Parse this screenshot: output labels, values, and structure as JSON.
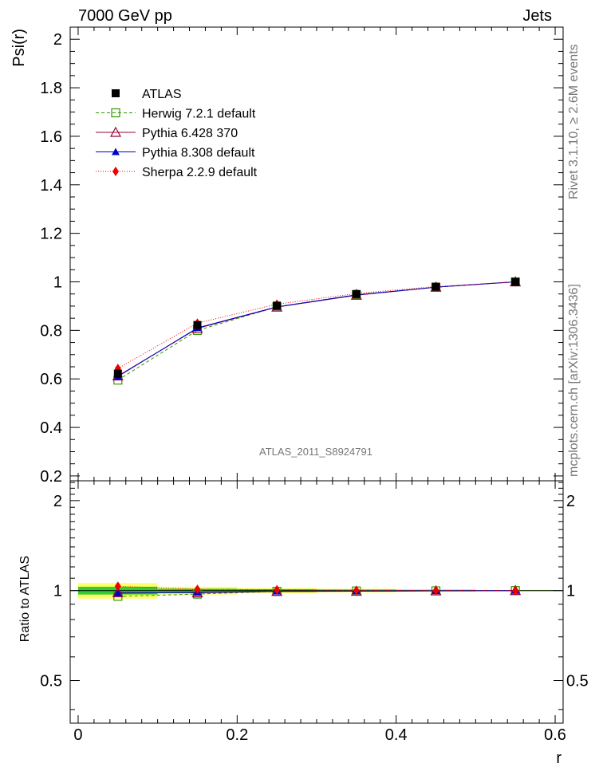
{
  "header": {
    "left": "7000 GeV pp",
    "right": "Jets"
  },
  "side_texts": {
    "rivet": "Rivet 3.1.10, ≥ 2.6M events",
    "mcplots": "mcplots.cern.ch [arXiv:1306.3436]"
  },
  "watermark": "ATLAS_2011_S8924791",
  "chart_data": {
    "type": "line",
    "xlabel": "r",
    "ylabel": "Psi(r)",
    "ratio_ylabel": "Ratio to ATLAS",
    "xlim": [
      -0.01,
      0.61
    ],
    "ylim": [
      0.18,
      2.05
    ],
    "ratio_ylim": [
      0.36,
      2.33
    ],
    "x_ticks": [
      {
        "v": 0,
        "label": "0"
      },
      {
        "v": 0.2,
        "label": "0.2"
      },
      {
        "v": 0.4,
        "label": "0.4"
      },
      {
        "v": 0.6,
        "label": "0.6"
      }
    ],
    "y_ticks": [
      {
        "v": 0.2,
        "label": "0.2"
      },
      {
        "v": 0.4,
        "label": "0.4"
      },
      {
        "v": 0.6,
        "label": "0.6"
      },
      {
        "v": 0.8,
        "label": "0.8"
      },
      {
        "v": 1.0,
        "label": "1"
      },
      {
        "v": 1.2,
        "label": "1.2"
      },
      {
        "v": 1.4,
        "label": "1.4"
      },
      {
        "v": 1.6,
        "label": "1.6"
      },
      {
        "v": 1.8,
        "label": "1.8"
      },
      {
        "v": 2.0,
        "label": "2"
      }
    ],
    "ratio_y_ticks": [
      {
        "v": 0.5,
        "label": "0.5"
      },
      {
        "v": 1,
        "label": "1"
      },
      {
        "v": 2,
        "label": "2"
      }
    ],
    "x": [
      0.05,
      0.15,
      0.25,
      0.35,
      0.45,
      0.55
    ],
    "data": {
      "name": "ATLAS",
      "values": [
        0.622,
        0.822,
        0.902,
        0.95,
        0.98,
        1.0
      ],
      "errors": [
        0.018,
        0.012,
        0.01,
        0.008,
        0.006,
        0.003
      ]
    },
    "band": {
      "x_edges": [
        0.0,
        0.1,
        0.2,
        0.3,
        0.4,
        0.5,
        0.6
      ],
      "inner": [
        0.03,
        0.014,
        0.011,
        0.008,
        0.006,
        0.003
      ],
      "outer": [
        0.06,
        0.03,
        0.02,
        0.014,
        0.009,
        0.005
      ],
      "inner_color": "#33cc33",
      "outer_color": "#ffff66"
    },
    "series": [
      {
        "name": "Herwig 7.2.1 default",
        "color": "#339900",
        "marker": "open-square",
        "dash": "4,3",
        "values": [
          0.595,
          0.8,
          0.897,
          0.947,
          0.978,
          1.0
        ]
      },
      {
        "name": "Pythia 6.428 370",
        "color": "#990033",
        "marker": "open-triangle",
        "dash": "",
        "values": [
          0.612,
          0.808,
          0.896,
          0.945,
          0.978,
          1.0
        ]
      },
      {
        "name": "Pythia 8.308 default",
        "color": "#0000cc",
        "marker": "filled-triangle",
        "dash": "",
        "values": [
          0.61,
          0.81,
          0.897,
          0.946,
          0.978,
          1.0
        ]
      },
      {
        "name": "Sherpa 2.2.9 default",
        "color": "#ee0000",
        "marker": "filled-diamond",
        "dash": "1,2",
        "values": [
          0.643,
          0.83,
          0.908,
          0.952,
          0.981,
          1.0
        ]
      }
    ]
  }
}
